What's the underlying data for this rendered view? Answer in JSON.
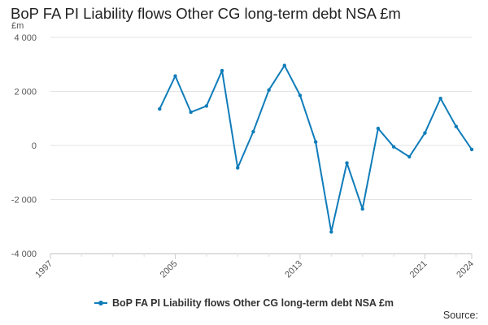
{
  "chart_data": {
    "type": "line",
    "title": "BoP FA PI Liability flows Other CG long-term debt NSA £m",
    "ylabel": "£m",
    "ylim": [
      -4000,
      4000
    ],
    "xlim": [
      1997,
      2024
    ],
    "yticks": [
      {
        "value": 4000,
        "label": "4 000"
      },
      {
        "value": 2000,
        "label": "2 000"
      },
      {
        "value": 0,
        "label": "0"
      },
      {
        "value": -2000,
        "label": "-2 000"
      },
      {
        "value": -4000,
        "label": "-4 000"
      }
    ],
    "xticks": [
      {
        "value": 1997,
        "label": "1997"
      },
      {
        "value": 2005,
        "label": "2005"
      },
      {
        "value": 2013,
        "label": "2013"
      },
      {
        "value": 2021,
        "label": "2021"
      },
      {
        "value": 2024,
        "label": "2024"
      }
    ],
    "x_minor_ticks": [
      1999,
      2001,
      2003,
      2007,
      2009,
      2011,
      2015,
      2017,
      2019,
      2023
    ],
    "grid": "horizontal",
    "legend_position": "bottom",
    "series": [
      {
        "name": "BoP FA PI Liability flows Other CG long-term debt NSA £m",
        "color": "#0f7cba",
        "x": [
          2004,
          2005,
          2006,
          2007,
          2008,
          2009,
          2010,
          2011,
          2012,
          2013,
          2014,
          2015,
          2016,
          2017,
          2018,
          2019,
          2020,
          2021,
          2022,
          2023,
          2024
        ],
        "values": [
          1350,
          2570,
          1230,
          1460,
          2770,
          -830,
          510,
          2050,
          2960,
          1850,
          130,
          -3200,
          -650,
          -2350,
          630,
          -50,
          -420,
          460,
          1740,
          700,
          -150
        ]
      }
    ]
  },
  "source_label": "Source:"
}
